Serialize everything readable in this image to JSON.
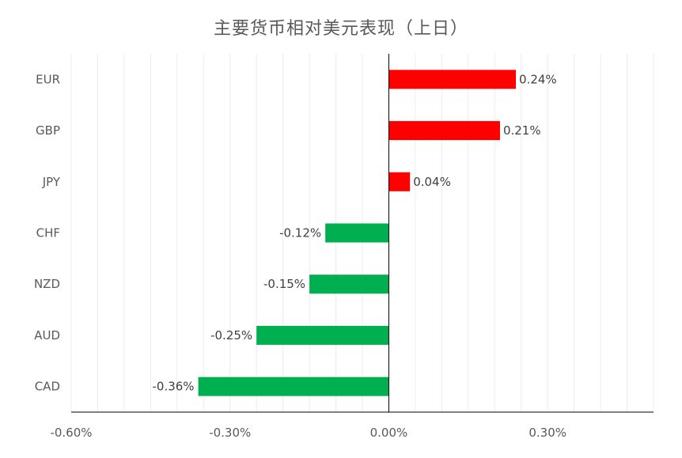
{
  "chart_data": {
    "type": "bar",
    "orientation": "horizontal",
    "title": "主要货币相对美元表现（上日）",
    "categories": [
      "EUR",
      "GBP",
      "JPY",
      "CHF",
      "NZD",
      "AUD",
      "CAD"
    ],
    "values": [
      0.24,
      0.21,
      0.04,
      -0.12,
      -0.15,
      -0.25,
      -0.36
    ],
    "data_labels": [
      "0.24%",
      "0.21%",
      "0.04%",
      "-0.12%",
      "-0.15%",
      "-0.25%",
      "-0.36%"
    ],
    "xlim": [
      -0.6,
      0.5
    ],
    "x_ticks": [
      -0.6,
      -0.3,
      0.0,
      0.3
    ],
    "x_tick_labels": [
      "-0.60%",
      "-0.30%",
      "0.00%",
      "0.30%"
    ],
    "grid": "vertical minor lines",
    "legend": "none",
    "colors": {
      "positive": "#ff0000",
      "negative": "#00b050"
    }
  }
}
